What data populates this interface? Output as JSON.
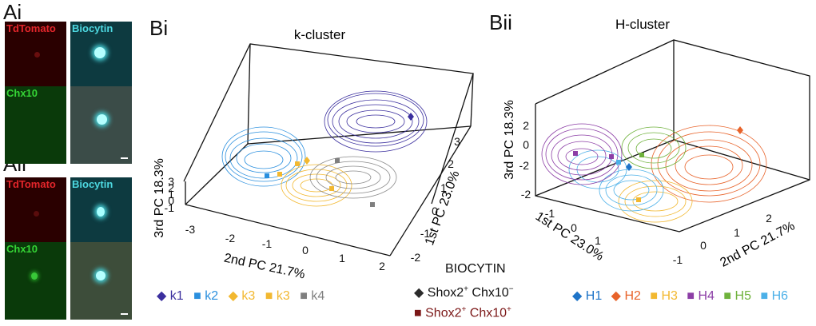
{
  "panels": {
    "Ai": {
      "label": "Ai",
      "tiles": [
        {
          "label": "TdTomato",
          "label_color": "#e6262b",
          "bg": "#2a0000"
        },
        {
          "label": "Biocytin",
          "label_color": "#4dd8e0",
          "bg": "#0d3a40"
        },
        {
          "label": "Chx10",
          "label_color": "#35d435",
          "bg": "#0a3a0a"
        },
        {
          "label": "",
          "label_color": "#ffffff",
          "bg": "#3b4c48"
        }
      ]
    },
    "Aii": {
      "label": "Aii",
      "tiles": [
        {
          "label": "TdTomato",
          "label_color": "#e6262b",
          "bg": "#2a0000"
        },
        {
          "label": "Biocytin",
          "label_color": "#4dd8e0",
          "bg": "#0d3a40"
        },
        {
          "label": "Chx10",
          "label_color": "#35d435",
          "bg": "#0a3a0a"
        },
        {
          "label": "",
          "label_color": "#ffffff",
          "bg": "#3d4d3a"
        }
      ]
    },
    "Bi": {
      "label": "Bi"
    },
    "Bii": {
      "label": "Bii"
    }
  },
  "chart_data": [
    {
      "type": "scatter",
      "title": "k-cluster",
      "xlabel": "2nd PC 21.7%",
      "ylabel": "1st PC 23.0%",
      "zlabel": "3rd PC 18.3%",
      "x_ticks": [
        "-3",
        "-2",
        "-1",
        "0",
        "1",
        "2"
      ],
      "y_ticks": [
        "-2",
        "-1",
        "0",
        "1",
        "2",
        "3"
      ],
      "z_ticks": [
        "-1",
        "0",
        "1",
        "2",
        "3"
      ],
      "legend": [
        {
          "name": "k1",
          "marker": "diamond",
          "color": "#3b2f9e"
        },
        {
          "name": "k2",
          "marker": "square",
          "color": "#2a8fde"
        },
        {
          "name": "k3",
          "marker": "diamond",
          "color": "#f2b830"
        },
        {
          "name": "k3",
          "marker": "square",
          "color": "#f2b830"
        },
        {
          "name": "k4",
          "marker": "square",
          "color": "#7f7f7f"
        }
      ]
    },
    {
      "type": "scatter",
      "title": "H-cluster",
      "xlabel": "2nd PC 21.7%",
      "ylabel": "1st PC 23.0%",
      "zlabel": "3rd PC 18.3%",
      "x_ticks": [
        "-1",
        "0",
        "1",
        "2"
      ],
      "y_ticks": [
        "-2",
        "-1",
        "0",
        "1"
      ],
      "z_ticks": [
        "-2",
        "0",
        "2"
      ],
      "legend": [
        {
          "name": "H1",
          "marker": "diamond",
          "color": "#1e74c8"
        },
        {
          "name": "H2",
          "marker": "diamond",
          "color": "#e8632a"
        },
        {
          "name": "H3",
          "marker": "square",
          "color": "#f2b830"
        },
        {
          "name": "H4",
          "marker": "square",
          "color": "#8c3ea6"
        },
        {
          "name": "H5",
          "marker": "square",
          "color": "#6fb23c"
        },
        {
          "name": "H6",
          "marker": "square",
          "color": "#4bb0e8"
        }
      ]
    }
  ],
  "biocytin_legend": {
    "title": "BIOCYTIN",
    "items": [
      {
        "base": "Shox2",
        "sup1": "+",
        "mid": " Chx10",
        "sup2": "−",
        "marker": "diamond",
        "color": "#2b2b2b",
        "text_color": "#111111"
      },
      {
        "base": "Shox2",
        "sup1": "+",
        "mid": " Chx10",
        "sup2": "+",
        "marker": "square",
        "color": "#7b1717",
        "text_color": "#7b1717"
      }
    ]
  }
}
